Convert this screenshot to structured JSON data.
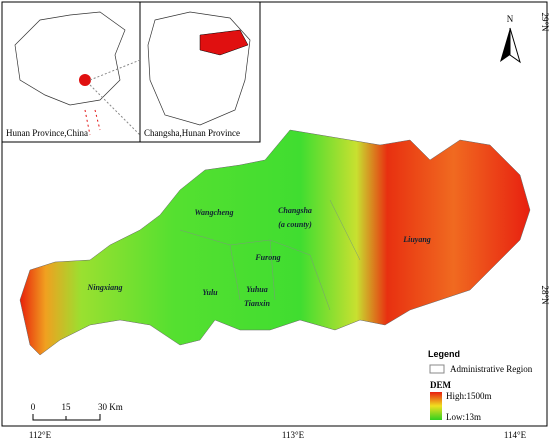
{
  "insets": {
    "china_label": "Hunan Province,China",
    "province_label": "Changsha,Hunan Province"
  },
  "north_arrow": "N",
  "latitude_labels": [
    "29°N",
    "28°N"
  ],
  "longitude_labels": [
    "112°E",
    "113°E",
    "114°E"
  ],
  "places": [
    "Wangcheng",
    "Changsha",
    "(a county)",
    "Furong",
    "Yulu",
    "Yuhua",
    "Tianxin",
    "Ningxiang",
    "Liuyang"
  ],
  "legend": {
    "title": "Legend",
    "region": "Administrative Region",
    "dem_title": "DEM",
    "high": "High:1500m",
    "low": "Low:13m"
  },
  "scale_bar": {
    "labels": [
      "0",
      "15",
      "30 Km"
    ]
  }
}
